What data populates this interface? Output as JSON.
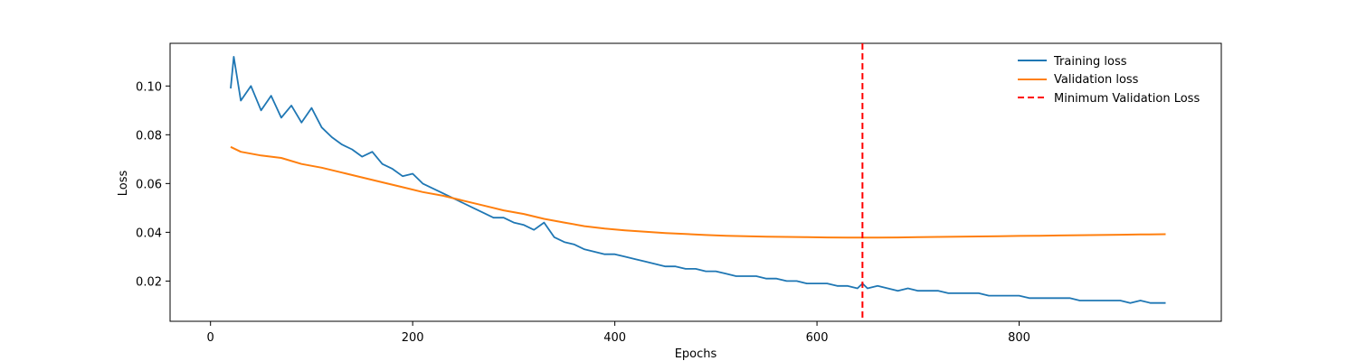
{
  "chart_data": {
    "type": "line",
    "title": "",
    "xlabel": "Epochs",
    "ylabel": "Loss",
    "xlim": [
      -40,
      1000
    ],
    "ylim": [
      0.0035,
      0.1175
    ],
    "xticks": [
      0,
      200,
      400,
      600,
      800
    ],
    "yticks": [
      0.02,
      0.04,
      0.06,
      0.08,
      0.1
    ],
    "ytick_labels": [
      "0.02",
      "0.04",
      "0.06",
      "0.08",
      "0.10"
    ],
    "grid": false,
    "legend_position": "top-right",
    "series": [
      {
        "name": "Training loss",
        "color": "#1f77b4",
        "note": "noisy, sampled",
        "x": [
          20,
          23,
          30,
          40,
          50,
          60,
          70,
          80,
          90,
          100,
          110,
          120,
          130,
          140,
          150,
          160,
          170,
          180,
          190,
          200,
          210,
          220,
          230,
          240,
          250,
          260,
          270,
          280,
          290,
          300,
          310,
          320,
          330,
          340,
          350,
          360,
          370,
          380,
          390,
          400,
          410,
          420,
          430,
          440,
          450,
          460,
          470,
          480,
          490,
          500,
          510,
          520,
          530,
          540,
          550,
          560,
          570,
          580,
          590,
          600,
          610,
          620,
          630,
          640,
          645,
          650,
          660,
          670,
          680,
          690,
          700,
          710,
          720,
          730,
          740,
          750,
          760,
          770,
          780,
          790,
          800,
          810,
          820,
          830,
          840,
          850,
          860,
          870,
          880,
          890,
          900,
          910,
          920,
          930,
          940,
          945
        ],
        "y": [
          0.099,
          0.112,
          0.094,
          0.1,
          0.09,
          0.096,
          0.087,
          0.092,
          0.085,
          0.091,
          0.083,
          0.079,
          0.076,
          0.074,
          0.071,
          0.073,
          0.068,
          0.066,
          0.063,
          0.064,
          0.06,
          0.058,
          0.056,
          0.054,
          0.052,
          0.05,
          0.048,
          0.046,
          0.046,
          0.044,
          0.043,
          0.041,
          0.044,
          0.038,
          0.036,
          0.035,
          0.033,
          0.032,
          0.031,
          0.031,
          0.03,
          0.029,
          0.028,
          0.027,
          0.026,
          0.026,
          0.025,
          0.025,
          0.024,
          0.024,
          0.023,
          0.022,
          0.022,
          0.022,
          0.021,
          0.021,
          0.02,
          0.02,
          0.019,
          0.019,
          0.019,
          0.018,
          0.018,
          0.017,
          0.019,
          0.017,
          0.018,
          0.017,
          0.016,
          0.017,
          0.016,
          0.016,
          0.016,
          0.015,
          0.015,
          0.015,
          0.015,
          0.014,
          0.014,
          0.014,
          0.014,
          0.013,
          0.013,
          0.013,
          0.013,
          0.013,
          0.012,
          0.012,
          0.012,
          0.012,
          0.012,
          0.011,
          0.012,
          0.011,
          0.011,
          0.011
        ]
      },
      {
        "name": "Validation loss",
        "color": "#ff7f0e",
        "x": [
          20,
          30,
          50,
          70,
          90,
          110,
          130,
          150,
          170,
          190,
          210,
          230,
          250,
          270,
          290,
          310,
          330,
          350,
          370,
          390,
          410,
          430,
          450,
          470,
          490,
          510,
          530,
          550,
          570,
          590,
          610,
          630,
          645,
          660,
          680,
          700,
          720,
          740,
          760,
          780,
          800,
          820,
          840,
          860,
          880,
          900,
          920,
          945
        ],
        "y": [
          0.075,
          0.073,
          0.0715,
          0.0705,
          0.068,
          0.0665,
          0.0645,
          0.0625,
          0.0605,
          0.0585,
          0.0565,
          0.055,
          0.053,
          0.051,
          0.049,
          0.0475,
          0.0455,
          0.044,
          0.0425,
          0.0415,
          0.0408,
          0.0402,
          0.0397,
          0.0393,
          0.0389,
          0.0386,
          0.0384,
          0.0382,
          0.0381,
          0.038,
          0.0379,
          0.0378,
          0.0378,
          0.0378,
          0.0379,
          0.038,
          0.0381,
          0.0382,
          0.0383,
          0.0384,
          0.0385,
          0.0386,
          0.0387,
          0.0388,
          0.0389,
          0.039,
          0.0391,
          0.0392
        ]
      }
    ],
    "vline": {
      "name": "Minimum Validation Loss",
      "x": 645,
      "color": "#ff0000",
      "style": "dashed"
    }
  }
}
